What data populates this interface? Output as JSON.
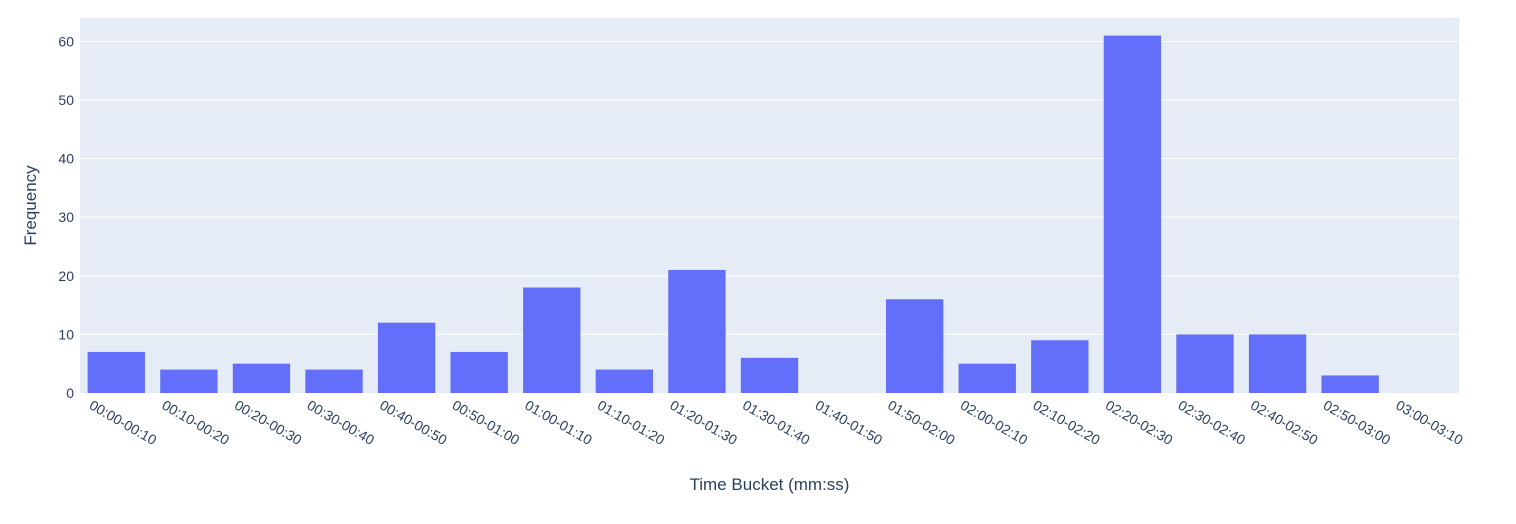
{
  "chart_data": {
    "type": "bar",
    "title": "",
    "xlabel": "Time Bucket (mm:ss)",
    "ylabel": "Frequency",
    "ylim": [
      0,
      64
    ],
    "yticks": [
      0,
      10,
      20,
      30,
      40,
      50,
      60
    ],
    "grid": true,
    "legend": "none",
    "colors": {
      "bar": "#636efa",
      "plot_bg": "#e5ecf6",
      "grid": "#ffffff",
      "text": "#2a3f5f"
    },
    "categories": [
      "00:00-00:10",
      "00:10-00:20",
      "00:20-00:30",
      "00:30-00:40",
      "00:40-00:50",
      "00:50-01:00",
      "01:00-01:10",
      "01:10-01:20",
      "01:20-01:30",
      "01:30-01:40",
      "01:40-01:50",
      "01:50-02:00",
      "02:00-02:10",
      "02:10-02:20",
      "02:20-02:30",
      "02:30-02:40",
      "02:40-02:50",
      "02:50-03:00",
      "03:00-03:10"
    ],
    "values": [
      7,
      4,
      5,
      4,
      12,
      7,
      18,
      4,
      21,
      6,
      0,
      16,
      5,
      9,
      61,
      10,
      10,
      3,
      0
    ]
  }
}
